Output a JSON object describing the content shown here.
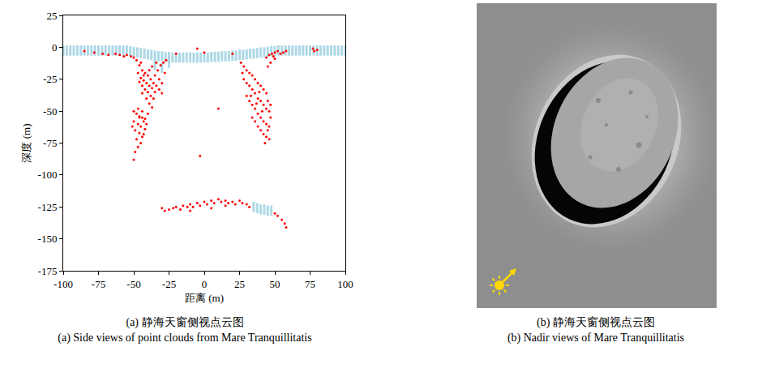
{
  "chart_data": {
    "type": "scatter",
    "xlabel": "距离 (m)",
    "ylabel": "深度 (m)",
    "xlim": [
      -100,
      100
    ],
    "xticks": [
      -100,
      -75,
      -50,
      -25,
      0,
      25,
      50,
      75,
      100
    ],
    "ylim": [
      -175,
      25
    ],
    "yticks": [
      -175,
      -150,
      -125,
      -100,
      -75,
      -50,
      -25,
      0,
      25
    ],
    "grid": false,
    "series": [
      {
        "color": "#add8e6",
        "marker": "dash",
        "x": [
          -100,
          -97.5,
          -95,
          -92.5,
          -90,
          -87.5,
          -85,
          -82.5,
          -80,
          -77.5,
          -75,
          -72.5,
          -70,
          -67.5,
          -65,
          -62.5,
          -60,
          -57.5,
          -55,
          -52.5,
          -50,
          -47.5,
          -45,
          -42.5,
          -40,
          -37.5,
          -35,
          -32.5,
          -30,
          -27.5,
          -25,
          -22.5,
          -20,
          -17.5,
          -15,
          -12.5,
          -10,
          -7.5,
          -5,
          -2.5,
          0,
          2.5,
          5,
          7.5,
          10,
          12.5,
          15,
          17.5,
          20,
          22.5,
          25,
          27.5,
          30,
          32.5,
          35,
          37.5,
          40,
          42.5,
          45,
          47.5,
          50,
          52.5,
          55,
          57.5,
          60,
          62.5,
          65,
          67.5,
          70,
          72.5,
          75,
          77.5,
          80,
          82.5,
          85,
          87.5,
          90,
          92.5,
          95,
          97.5,
          100,
          35,
          37.5,
          40,
          42.5,
          45,
          47.5,
          -35,
          -30,
          -25
        ],
        "y": [
          -2.5,
          -2.5,
          -2.5,
          -2.5,
          -2.5,
          -2.5,
          -2.5,
          -2.5,
          -2.5,
          -2.5,
          -2.5,
          -2.5,
          -2.5,
          -2.5,
          -2.5,
          -2.5,
          -2.5,
          -2.5,
          -2.5,
          -3,
          -3.5,
          -4,
          -4.5,
          -5,
          -5.5,
          -6,
          -6.5,
          -7,
          -7,
          -7.5,
          -7.5,
          -8,
          -8,
          -8,
          -8,
          -8,
          -8,
          -8,
          -8,
          -8,
          -8,
          -8,
          -7.5,
          -7.5,
          -7.5,
          -7,
          -7,
          -7,
          -6.5,
          -6.5,
          -6,
          -6,
          -5.5,
          -5,
          -5,
          -4.5,
          -4,
          -4,
          -3.5,
          -3,
          -3,
          -2.5,
          -2.5,
          -2.5,
          -2.5,
          -2.5,
          -2.5,
          -2.5,
          -2.5,
          -2.5,
          -2.5,
          -2.5,
          -2.5,
          -2.5,
          -2.5,
          -2.5,
          -2.5,
          -2.5,
          -2.5,
          -2.5,
          -2.5,
          -125,
          -126,
          -127,
          -127,
          -128,
          -128,
          -14,
          -16,
          -12
        ]
      },
      {
        "color": "#ff0000",
        "marker": "dot",
        "x": [
          -85,
          -78,
          -72,
          -68,
          -63,
          -60,
          -57,
          -55,
          -52,
          -50,
          -5,
          0,
          80,
          78,
          77,
          44,
          46,
          48,
          50,
          52,
          54,
          56,
          58,
          50,
          47,
          45,
          49,
          -48,
          -46,
          -44,
          -42,
          -40,
          -38,
          -36,
          -34,
          -32,
          -30,
          -45,
          -43,
          -41,
          -39,
          -37,
          -44,
          -42,
          -40,
          -38,
          -36,
          -35,
          -33,
          -31,
          -29,
          -27,
          -47,
          -46,
          -43,
          -39,
          -37,
          -34,
          -32,
          -30,
          -28,
          -41,
          -39,
          -37,
          -44,
          -45,
          -35,
          -50,
          -48,
          -46,
          -44,
          -42,
          -50,
          -47,
          -45,
          -43,
          -49,
          -46,
          -44,
          -42,
          -48,
          -45,
          -43,
          -47,
          -49,
          -50,
          -46,
          -41,
          -51,
          -44,
          -40,
          -47,
          26,
          28,
          30,
          32,
          34,
          36,
          38,
          40,
          42,
          44,
          28,
          30,
          32,
          34,
          36,
          38,
          40,
          42,
          44,
          46,
          30,
          32,
          34,
          36,
          38,
          40,
          42,
          44,
          46,
          34,
          36,
          38,
          40,
          42,
          44,
          46,
          43,
          45,
          47,
          41,
          39,
          45,
          47,
          27,
          33,
          37,
          -30,
          -28,
          -25,
          -22,
          -20,
          -17,
          -15,
          -12,
          -10,
          -8,
          -5,
          -3,
          0,
          2,
          5,
          7,
          10,
          12,
          15,
          17,
          20,
          22,
          25,
          27,
          30,
          32,
          50,
          52,
          55,
          57,
          58,
          -10,
          5,
          15,
          -3,
          10,
          20,
          -20
        ],
        "y": [
          -3,
          -4,
          -5,
          -6,
          -5,
          -6,
          -7,
          -6,
          -7,
          -8,
          -1,
          -4,
          -2,
          -3,
          -1,
          -8,
          -6,
          -5,
          -4,
          -3,
          -5,
          -4,
          -3,
          -9,
          -12,
          -15,
          -7,
          -10,
          -14,
          -18,
          -20,
          -22,
          -25,
          -28,
          -30,
          -33,
          -36,
          -24,
          -26,
          -28,
          -30,
          -32,
          -30,
          -33,
          -35,
          -38,
          -40,
          -22,
          -18,
          -14,
          -12,
          -10,
          -20,
          -27,
          -22,
          -18,
          -15,
          -12,
          -25,
          -28,
          -20,
          -40,
          -44,
          -47,
          -36,
          -12,
          -35,
          -50,
          -52,
          -54,
          -55,
          -56,
          -58,
          -60,
          -62,
          -58,
          -65,
          -67,
          -70,
          -64,
          -72,
          -75,
          -68,
          -78,
          -82,
          -88,
          -55,
          -60,
          -62,
          -50,
          -52,
          -48,
          -12,
          -15,
          -18,
          -20,
          -22,
          -25,
          -28,
          -30,
          -33,
          -36,
          -25,
          -28,
          -30,
          -33,
          -36,
          -40,
          -42,
          -45,
          -48,
          -50,
          -38,
          -42,
          -45,
          -48,
          -52,
          -55,
          -58,
          -60,
          -62,
          -55,
          -58,
          -62,
          -65,
          -68,
          -70,
          -72,
          -75,
          -65,
          -55,
          -50,
          -35,
          -42,
          -45,
          -20,
          -38,
          -44,
          -126,
          -128,
          -127,
          -126,
          -125,
          -127,
          -124,
          -125,
          -123,
          -125,
          -122,
          -124,
          -121,
          -123,
          -120,
          -122,
          -119,
          -121,
          -120,
          -122,
          -121,
          -123,
          -120,
          -122,
          -123,
          -125,
          -130,
          -132,
          -135,
          -138,
          -141,
          -128,
          -126,
          -124,
          -85,
          -48,
          -5,
          -5
        ]
      }
    ]
  },
  "captions": [
    {
      "zh": "(a) 静海天窗侧视点云图",
      "en": "(a) Side views of point clouds from Mare Tranquillitatis"
    },
    {
      "zh": "(b) 静海天窗侧视点云图",
      "en": "(b) Nadir views of Mare Tranquillitatis"
    }
  ]
}
